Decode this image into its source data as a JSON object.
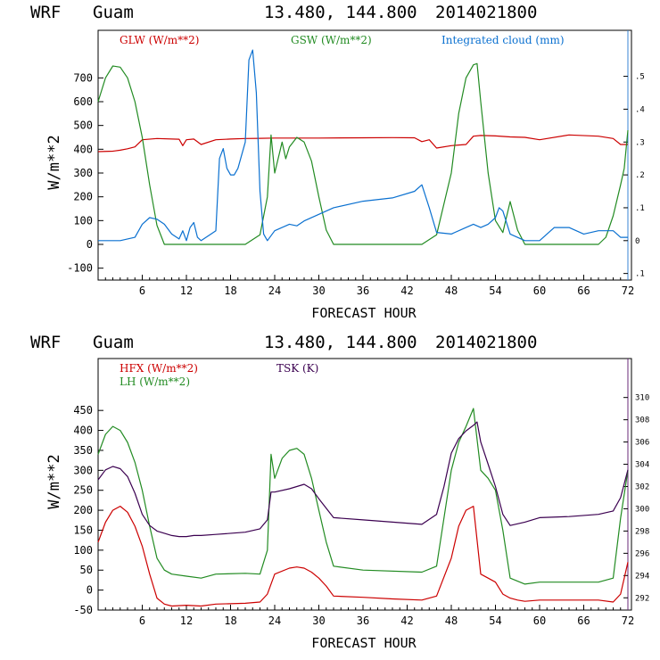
{
  "chart_data": [
    {
      "type": "line",
      "header": {
        "model": "WRF",
        "site": "Guam",
        "coords": "13.480, 144.800",
        "run": "2014021800"
      },
      "xlabel": "FORECAST HOUR",
      "ylabel": "W/m**2",
      "xlim": [
        0,
        72
      ],
      "ylim": [
        -150,
        900
      ],
      "y2lim": [
        -0.12,
        0.64
      ],
      "x_ticks": [
        6,
        12,
        18,
        24,
        30,
        36,
        42,
        48,
        54,
        60,
        66,
        72
      ],
      "y_ticks": [
        -100,
        0,
        100,
        200,
        300,
        400,
        500,
        600,
        700
      ],
      "y2_ticks": [
        {
          "v": -0.1,
          "label": ".1"
        },
        {
          "v": 0,
          "label": "0"
        },
        {
          "v": 0.1,
          "label": ".1"
        },
        {
          "v": 0.2,
          "label": ".2"
        },
        {
          "v": 0.3,
          "label": ".3"
        },
        {
          "v": 0.4,
          "label": ".4"
        },
        {
          "v": 0.5,
          "label": ".5"
        }
      ],
      "series": [
        {
          "name": "GLW (W/m**2)",
          "color": "#cc0000",
          "axis": "y",
          "x": [
            0,
            2,
            3,
            4,
            5,
            6,
            8,
            11,
            11.5,
            12,
            13,
            14,
            16,
            18,
            20,
            22,
            24,
            30,
            36,
            40,
            43,
            44,
            45,
            46,
            48,
            50,
            51,
            52,
            54,
            56,
            58,
            60,
            64,
            68,
            70,
            71,
            72
          ],
          "y": [
            390,
            392,
            396,
            402,
            410,
            440,
            445,
            442,
            415,
            440,
            443,
            420,
            440,
            443,
            445,
            446,
            447,
            447,
            448,
            449,
            448,
            432,
            440,
            405,
            415,
            420,
            455,
            458,
            456,
            452,
            450,
            440,
            460,
            455,
            445,
            420,
            420
          ]
        },
        {
          "name": "GSW (W/m**2)",
          "color": "#228b22",
          "axis": "y",
          "x": [
            0,
            1,
            2,
            3,
            4,
            5,
            6,
            7,
            8,
            9,
            20,
            22,
            23,
            23.5,
            24,
            25,
            25.5,
            26,
            27,
            28,
            29,
            30,
            31,
            32,
            44,
            46,
            48,
            49,
            50,
            51,
            51.5,
            52,
            53,
            54,
            55,
            56,
            57,
            58,
            68,
            69,
            70,
            71,
            71.5,
            72
          ],
          "y": [
            600,
            700,
            750,
            745,
            700,
            600,
            450,
            250,
            80,
            0,
            0,
            40,
            200,
            460,
            300,
            430,
            360,
            410,
            450,
            430,
            350,
            200,
            60,
            0,
            0,
            40,
            300,
            550,
            700,
            755,
            760,
            600,
            300,
            100,
            50,
            180,
            60,
            0,
            0,
            30,
            120,
            250,
            320,
            480
          ]
        },
        {
          "name": "Integrated cloud (mm)",
          "color": "#0a70d0",
          "axis": "y2",
          "x": [
            0,
            3,
            4,
            5,
            6,
            7,
            8,
            9,
            10,
            11,
            11.5,
            12,
            12.5,
            13,
            13.5,
            14,
            15,
            16,
            16.5,
            17,
            17.5,
            18,
            18.5,
            19,
            20,
            20.5,
            21,
            21.5,
            22,
            22.5,
            23,
            24,
            26,
            27,
            28,
            30,
            32,
            36,
            40,
            43,
            44,
            45,
            46,
            48,
            50,
            51,
            52,
            53,
            54,
            54.5,
            55,
            56,
            58,
            60,
            62,
            64,
            66,
            68,
            70,
            71,
            72
          ],
          "y": [
            0,
            0,
            0.005,
            0.01,
            0.05,
            0.07,
            0.065,
            0.05,
            0.02,
            0.005,
            0.03,
            0,
            0.04,
            0.055,
            0.01,
            0,
            0.015,
            0.03,
            0.25,
            0.28,
            0.22,
            0.2,
            0.2,
            0.22,
            0.3,
            0.55,
            0.58,
            0.45,
            0.15,
            0.02,
            0,
            0.03,
            0.05,
            0.045,
            0.06,
            0.08,
            0.1,
            0.12,
            0.13,
            0.15,
            0.17,
            0.1,
            0.025,
            0.02,
            0.04,
            0.05,
            0.04,
            0.05,
            0.07,
            0.1,
            0.09,
            0.02,
            0,
            0,
            0.04,
            0.04,
            0.02,
            0.03,
            0.03,
            0.01,
            0.01
          ]
        }
      ]
    },
    {
      "type": "line",
      "header": {
        "model": "WRF",
        "site": "Guam",
        "coords": "13.480, 144.800",
        "run": "2014021800"
      },
      "xlabel": "FORECAST HOUR",
      "ylabel": "W/m**2",
      "xlim": [
        0,
        72
      ],
      "ylim": [
        -50,
        580
      ],
      "y2lim": [
        290.9,
        313.5
      ],
      "x_ticks": [
        6,
        12,
        18,
        24,
        30,
        36,
        42,
        48,
        54,
        60,
        66,
        72
      ],
      "y_ticks": [
        -50,
        0,
        50,
        100,
        150,
        200,
        250,
        300,
        350,
        400,
        450
      ],
      "y2_ticks": [
        292,
        294,
        296,
        298,
        300,
        302,
        304,
        306,
        308,
        310
      ],
      "series": [
        {
          "name": "HFX (W/m**2)",
          "color": "#cc0000",
          "axis": "y",
          "x": [
            0,
            1,
            2,
            3,
            4,
            5,
            6,
            7,
            8,
            9,
            10,
            12,
            14,
            16,
            20,
            22,
            23,
            24,
            26,
            27,
            28,
            29,
            30,
            31,
            32,
            36,
            40,
            44,
            46,
            48,
            49,
            50,
            51,
            52,
            53,
            54,
            55,
            56,
            57,
            58,
            60,
            64,
            68,
            70,
            71,
            72
          ],
          "y": [
            120,
            170,
            200,
            210,
            195,
            160,
            110,
            40,
            -20,
            -35,
            -40,
            -38,
            -40,
            -35,
            -33,
            -30,
            -10,
            40,
            55,
            58,
            55,
            45,
            30,
            10,
            -15,
            -18,
            -22,
            -25,
            -15,
            80,
            160,
            200,
            210,
            40,
            30,
            20,
            -10,
            -20,
            -25,
            -28,
            -25,
            -25,
            -25,
            -30,
            -10,
            70
          ]
        },
        {
          "name": "LH (W/m**2)",
          "color": "#228b22",
          "axis": "y",
          "x": [
            0,
            1,
            2,
            3,
            4,
            5,
            6,
            7,
            8,
            9,
            10,
            12,
            14,
            16,
            20,
            22,
            23,
            23.5,
            24,
            25,
            26,
            27,
            28,
            29,
            30,
            31,
            32,
            36,
            44,
            46,
            48,
            49,
            50,
            51,
            52,
            53,
            54,
            55,
            56,
            58,
            60,
            64,
            68,
            70,
            71,
            72
          ],
          "y": [
            340,
            390,
            410,
            400,
            370,
            320,
            250,
            160,
            80,
            50,
            40,
            35,
            30,
            40,
            42,
            40,
            100,
            340,
            280,
            330,
            350,
            355,
            340,
            280,
            200,
            120,
            60,
            50,
            45,
            60,
            300,
            370,
            410,
            455,
            300,
            280,
            250,
            150,
            30,
            15,
            20,
            20,
            20,
            30,
            180,
            300
          ]
        },
        {
          "name": "TSK (K)",
          "color": "#3b0050",
          "axis": "y2",
          "x": [
            0,
            1,
            2,
            3,
            4,
            5,
            6,
            7,
            8,
            9,
            10,
            11,
            12,
            13,
            14,
            16,
            20,
            22,
            23,
            23.5,
            24,
            26,
            27,
            28,
            29,
            30,
            32,
            36,
            40,
            44,
            46,
            47,
            48,
            49,
            50,
            51,
            51.5,
            52,
            53,
            54,
            55,
            56,
            58,
            60,
            64,
            68,
            70,
            71,
            72
          ],
          "y": [
            302.6,
            303.5,
            303.8,
            303.6,
            302.9,
            301.4,
            299.5,
            298.5,
            298.0,
            297.8,
            297.6,
            297.5,
            297.5,
            297.6,
            297.6,
            297.7,
            297.9,
            298.2,
            299.0,
            301.5,
            301.5,
            301.8,
            302.0,
            302.2,
            301.8,
            300.9,
            299.2,
            299.0,
            298.8,
            298.6,
            299.5,
            302.0,
            305.0,
            306.3,
            307.0,
            307.5,
            307.8,
            306.0,
            304.0,
            302.0,
            299.5,
            298.5,
            298.8,
            299.2,
            299.3,
            299.5,
            299.8,
            301.0,
            303.5
          ]
        }
      ]
    }
  ]
}
